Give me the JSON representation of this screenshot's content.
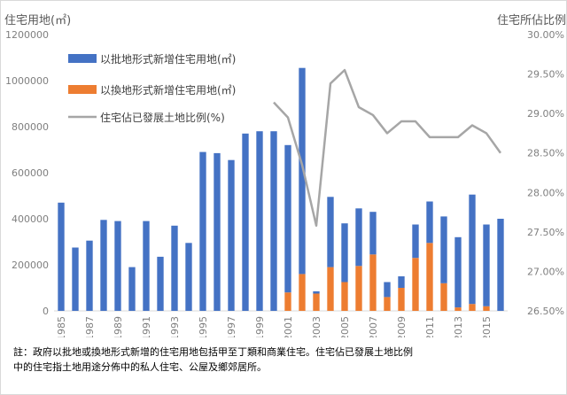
{
  "chart_data": {
    "type": "bar+line",
    "y_left_label": "住宅用地(㎡)",
    "y_right_label": "住宅所佔比例",
    "y_left_range": [
      0,
      1200000
    ],
    "y_left_ticks": [
      "0",
      "200000",
      "400000",
      "600000",
      "800000",
      "1000000",
      "1200000"
    ],
    "y_right_range": [
      26.5,
      30.0
    ],
    "y_right_ticks": [
      "26.50%",
      "27.00%",
      "27.50%",
      "28.00%",
      "28.50%",
      "29.00%",
      "29.50%",
      "30.00%"
    ],
    "x": [
      1985,
      1986,
      1987,
      1988,
      1989,
      1990,
      1991,
      1992,
      1993,
      1994,
      1995,
      1996,
      1997,
      1998,
      1999,
      2000,
      2001,
      2002,
      2003,
      2004,
      2005,
      2006,
      2007,
      2008,
      2009,
      2010,
      2011,
      2012,
      2013,
      2014,
      2015,
      2016
    ],
    "x_tick_labels": [
      "1985",
      "1987",
      "1989",
      "1991",
      "1993",
      "1995",
      "1997",
      "1999",
      "2001",
      "2003",
      "2005",
      "2007",
      "2009",
      "2011",
      "2013",
      "2015"
    ],
    "series": [
      {
        "name": "以批地形式新增住宅用地(㎡)",
        "kind": "bar",
        "color": "#4472c4",
        "values": [
          470000,
          275000,
          305000,
          395000,
          390000,
          190000,
          390000,
          235000,
          370000,
          295000,
          690000,
          685000,
          655000,
          770000,
          780000,
          780000,
          640000,
          895000,
          10000,
          305000,
          255000,
          250000,
          185000,
          65000,
          50000,
          145000,
          180000,
          290000,
          305000,
          475000,
          355000,
          400000
        ]
      },
      {
        "name": "以換地形式新增住宅用地(㎡)",
        "kind": "bar",
        "color": "#ed7d31",
        "values": [
          0,
          0,
          0,
          0,
          0,
          0,
          0,
          0,
          0,
          0,
          0,
          0,
          0,
          0,
          0,
          0,
          80000,
          160000,
          75000,
          190000,
          125000,
          195000,
          245000,
          60000,
          100000,
          230000,
          295000,
          120000,
          15000,
          30000,
          20000,
          0
        ]
      },
      {
        "name": "住宅佔已發展土地比例(%)",
        "kind": "line",
        "color": "#a6a6a6",
        "axis": "right",
        "points": [
          [
            2000,
            29.14
          ],
          [
            2001,
            28.95
          ],
          [
            2002,
            28.35
          ],
          [
            2003,
            27.58
          ],
          [
            2004,
            29.38
          ],
          [
            2005,
            29.55
          ],
          [
            2006,
            29.08
          ],
          [
            2007,
            28.98
          ],
          [
            2008,
            28.75
          ],
          [
            2009,
            28.9
          ],
          [
            2010,
            28.9
          ],
          [
            2011,
            28.7
          ],
          [
            2012,
            28.7
          ],
          [
            2013,
            28.7
          ],
          [
            2014,
            28.85
          ],
          [
            2015,
            28.75
          ],
          [
            2016,
            28.5
          ]
        ]
      }
    ],
    "legend_position": "top-left"
  },
  "note": {
    "line1": "註：政府以批地或換地形式新增的住宅用地包括甲至丁類和商業住宅。住宅佔已發展土地比例",
    "line2": "中的住宅指土地用途分佈中的私人住宅、公屋及鄉郊居所。"
  }
}
